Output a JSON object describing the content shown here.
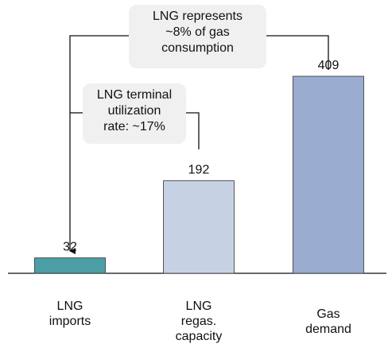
{
  "chart_data": {
    "type": "bar",
    "categories": [
      "LNG\nimports",
      "LNG\nregas.\ncapacity",
      "Gas demand"
    ],
    "values": [
      32,
      192,
      409
    ],
    "colors": [
      "#4b9ea3",
      "#c6d1e4",
      "#9aaccf"
    ],
    "annotations": [
      "LNG represents\n~8% of gas\nconsumption",
      "LNG terminal\nutilization\nrate: ~17%"
    ]
  }
}
